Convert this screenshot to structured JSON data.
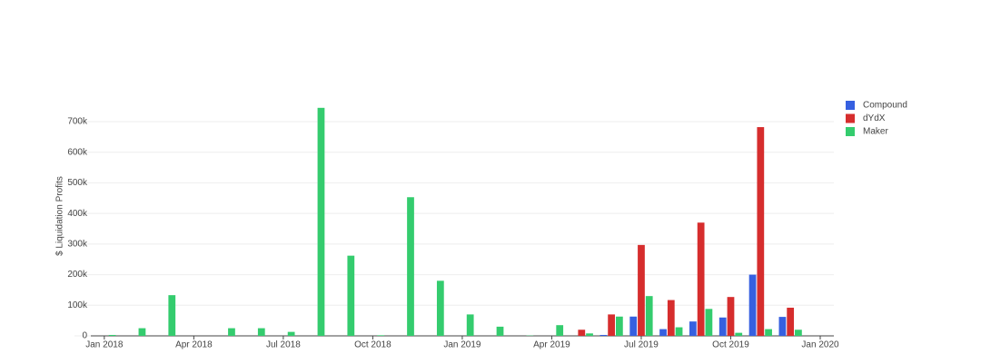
{
  "chart_data": {
    "type": "bar",
    "y_label": "$ Liquidation Profits",
    "x": [
      "2018-01",
      "2018-02",
      "2018-03",
      "2018-04",
      "2018-05",
      "2018-06",
      "2018-07",
      "2018-08",
      "2018-09",
      "2018-10",
      "2018-11",
      "2018-12",
      "2019-01",
      "2019-02",
      "2019-03",
      "2019-04",
      "2019-05",
      "2019-06",
      "2019-07",
      "2019-08",
      "2019-09",
      "2019-10",
      "2019-11",
      "2019-12"
    ],
    "series": [
      {
        "name": "Compound",
        "color": "#3660e0",
        "values": [
          0,
          0,
          0,
          0,
          0,
          0,
          0,
          0,
          0,
          0,
          0,
          0,
          0,
          0,
          0,
          0,
          0,
          3000,
          63000,
          22000,
          47000,
          60000,
          200000,
          62000
        ]
      },
      {
        "name": "dYdX",
        "color": "#d62d2d",
        "values": [
          0,
          0,
          0,
          0,
          0,
          0,
          0,
          0,
          0,
          0,
          0,
          0,
          0,
          0,
          0,
          0,
          20000,
          70000,
          297000,
          117000,
          370000,
          127000,
          682000,
          92000
        ]
      },
      {
        "name": "Maker",
        "color": "#34cc6e",
        "values": [
          3000,
          25000,
          133000,
          0,
          25000,
          25000,
          13000,
          745000,
          262000,
          2000,
          453000,
          180000,
          70000,
          30000,
          1000,
          35000,
          8000,
          63000,
          130000,
          28000,
          88000,
          10000,
          22000,
          20000
        ]
      }
    ],
    "xlim": [
      "2017-12",
      "2020-01"
    ],
    "xticks": [
      {
        "value": "2018-01",
        "label": "Jan 2018"
      },
      {
        "value": "2018-04",
        "label": "Apr 2018"
      },
      {
        "value": "2018-07",
        "label": "Jul 2018"
      },
      {
        "value": "2018-10",
        "label": "Oct 2018"
      },
      {
        "value": "2019-01",
        "label": "Jan 2019"
      },
      {
        "value": "2019-04",
        "label": "Apr 2019"
      },
      {
        "value": "2019-07",
        "label": "Jul 2019"
      },
      {
        "value": "2019-10",
        "label": "Oct 2019"
      },
      {
        "value": "2020-01",
        "label": "Jan 2020"
      }
    ],
    "ylim": [
      0,
      780000
    ],
    "yticks": [
      0,
      {
        "value": 100000,
        "label": "100k"
      },
      {
        "value": 200000,
        "label": "200k"
      },
      {
        "value": 300000,
        "label": "300k"
      },
      {
        "value": 400000,
        "label": "400k"
      },
      {
        "value": 500000,
        "label": "500k"
      },
      {
        "value": 600000,
        "label": "600k"
      },
      {
        "value": 700000,
        "label": "700k"
      }
    ],
    "grid": true,
    "legend": "top-right"
  }
}
